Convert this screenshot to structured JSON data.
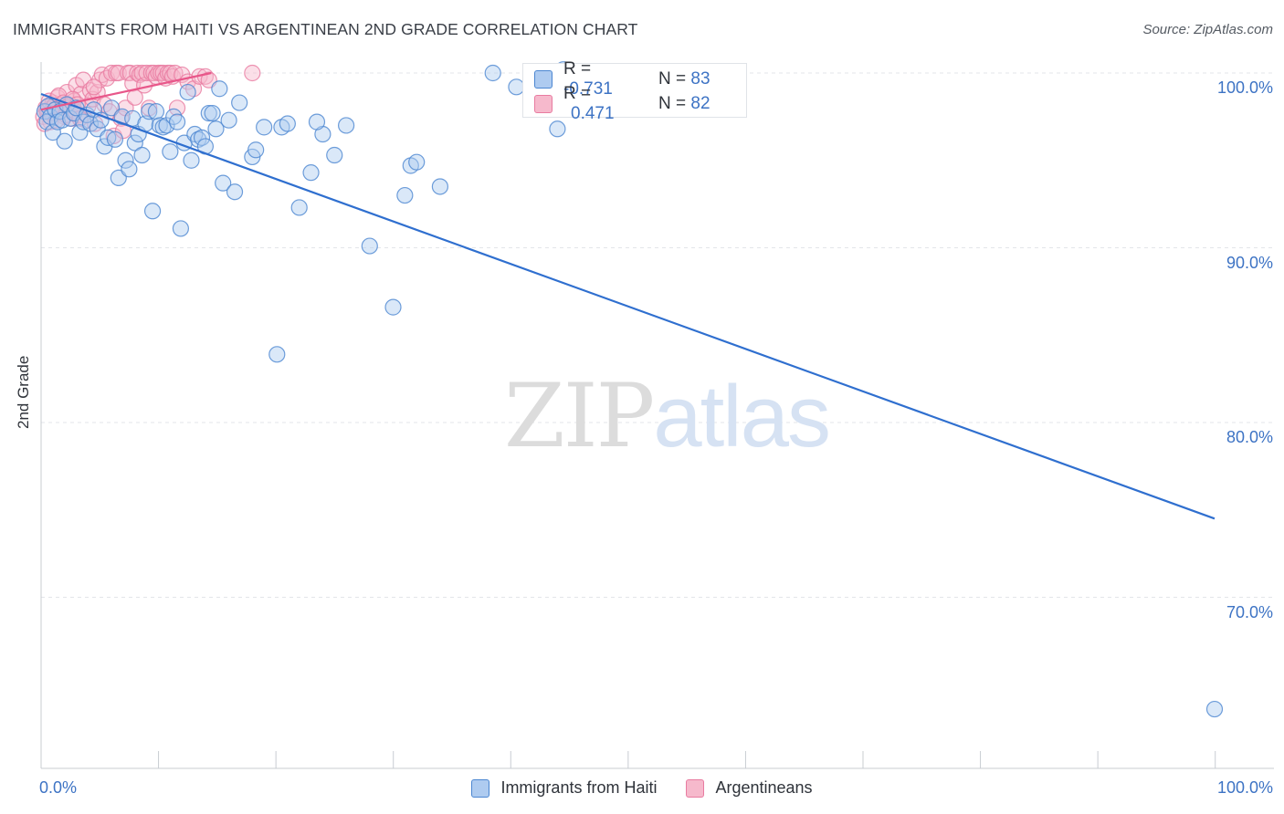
{
  "title": "IMMIGRANTS FROM HAITI VS ARGENTINEAN 2ND GRADE CORRELATION CHART",
  "source": "Source: ZipAtlas.com",
  "watermark": {
    "zip": "ZIP",
    "atlas": "atlas"
  },
  "legend": {
    "rows": [
      {
        "r_label": "R = ",
        "r_value": "-0.731",
        "n_label": "N = ",
        "n_value": "83"
      },
      {
        "r_label": "R = ",
        "r_value": "0.471",
        "n_label": "N = ",
        "n_value": "82"
      }
    ]
  },
  "colors": {
    "blue_fill": "#aecbf0",
    "blue_stroke": "#4b86d1",
    "blue_line": "#2f6fcf",
    "pink_fill": "#f6b9cc",
    "pink_stroke": "#e87ba0",
    "pink_line": "#e8578a",
    "grid": "#e3e5e9",
    "tick_text": "#3d73c4"
  },
  "chart_data": {
    "type": "scatter",
    "title": "IMMIGRANTS FROM HAITI VS ARGENTINEAN 2ND GRADE CORRELATION CHART",
    "xlabel": "",
    "ylabel": "2nd Grade",
    "xlim": [
      0,
      100
    ],
    "ylim": [
      60.5,
      101.5
    ],
    "x_tick_labels": [
      {
        "value": 0,
        "label": "0.0%"
      },
      {
        "value": 100,
        "label": "100.0%"
      }
    ],
    "y_tick_labels": [
      {
        "value": 100,
        "label": "100.0%"
      },
      {
        "value": 90,
        "label": "90.0%"
      },
      {
        "value": 80,
        "label": "80.0%"
      },
      {
        "value": 70,
        "label": "70.0%"
      }
    ],
    "series": [
      {
        "name": "Immigrants from Haiti",
        "color": "blue",
        "r": -0.731,
        "n": 83,
        "trend": {
          "x0": 0,
          "y0": 98.8,
          "x1": 100,
          "y1": 74.5
        },
        "points": [
          [
            0.3,
            97.8
          ],
          [
            0.5,
            97.2
          ],
          [
            0.6,
            98.1
          ],
          [
            0.8,
            97.5
          ],
          [
            1.0,
            96.6
          ],
          [
            1.2,
            97.9
          ],
          [
            1.4,
            97.2
          ],
          [
            1.6,
            97.8
          ],
          [
            1.8,
            97.3
          ],
          [
            2.0,
            96.1
          ],
          [
            2.2,
            98.2
          ],
          [
            2.5,
            97.4
          ],
          [
            2.8,
            97.7
          ],
          [
            3.0,
            98.0
          ],
          [
            3.3,
            96.6
          ],
          [
            3.6,
            97.2
          ],
          [
            3.9,
            97.6
          ],
          [
            4.2,
            97.1
          ],
          [
            4.5,
            97.9
          ],
          [
            4.8,
            96.8
          ],
          [
            5.1,
            97.3
          ],
          [
            5.4,
            95.8
          ],
          [
            5.7,
            96.3
          ],
          [
            6.0,
            98.0
          ],
          [
            6.3,
            96.2
          ],
          [
            6.6,
            94.0
          ],
          [
            6.9,
            97.5
          ],
          [
            7.2,
            95.0
          ],
          [
            7.5,
            94.5
          ],
          [
            7.8,
            97.4
          ],
          [
            8.0,
            96.0
          ],
          [
            8.3,
            96.5
          ],
          [
            8.6,
            95.3
          ],
          [
            8.9,
            97.1
          ],
          [
            9.2,
            97.8
          ],
          [
            9.5,
            92.1
          ],
          [
            9.8,
            97.8
          ],
          [
            10.1,
            97.0
          ],
          [
            10.4,
            96.9
          ],
          [
            10.7,
            97.0
          ],
          [
            11.0,
            95.5
          ],
          [
            11.3,
            97.5
          ],
          [
            11.6,
            97.2
          ],
          [
            11.9,
            91.1
          ],
          [
            12.2,
            96.0
          ],
          [
            12.5,
            98.9
          ],
          [
            12.8,
            95.0
          ],
          [
            13.1,
            96.5
          ],
          [
            13.4,
            96.2
          ],
          [
            13.7,
            96.3
          ],
          [
            14.0,
            95.8
          ],
          [
            14.3,
            97.7
          ],
          [
            14.6,
            97.7
          ],
          [
            14.9,
            96.8
          ],
          [
            15.2,
            99.1
          ],
          [
            15.5,
            93.7
          ],
          [
            16.0,
            97.3
          ],
          [
            16.5,
            93.2
          ],
          [
            16.9,
            98.3
          ],
          [
            18.0,
            95.2
          ],
          [
            18.3,
            95.6
          ],
          [
            19.0,
            96.9
          ],
          [
            20.1,
            83.9
          ],
          [
            20.5,
            96.9
          ],
          [
            21.0,
            97.1
          ],
          [
            22.0,
            92.3
          ],
          [
            23.0,
            94.3
          ],
          [
            24.0,
            96.5
          ],
          [
            25.0,
            95.3
          ],
          [
            23.5,
            97.2
          ],
          [
            26.0,
            97.0
          ],
          [
            28.0,
            90.1
          ],
          [
            30.0,
            86.6
          ],
          [
            31.0,
            93.0
          ],
          [
            31.5,
            94.7
          ],
          [
            32.0,
            94.9
          ],
          [
            34.0,
            93.5
          ],
          [
            38.5,
            100.0
          ],
          [
            40.5,
            99.2
          ],
          [
            44.0,
            100.1
          ],
          [
            44.5,
            100.2
          ],
          [
            44.0,
            96.8
          ],
          [
            100.0,
            63.6
          ]
        ]
      },
      {
        "name": "Argentineans",
        "color": "pink",
        "r": 0.471,
        "n": 82,
        "trend": {
          "x0": 0,
          "y0": 97.9,
          "x1": 14.5,
          "y1": 100.0
        },
        "points": [
          [
            0.2,
            97.5
          ],
          [
            0.4,
            98.0
          ],
          [
            0.6,
            97.9
          ],
          [
            0.8,
            97.2
          ],
          [
            1.0,
            98.3
          ],
          [
            1.2,
            97.7
          ],
          [
            1.4,
            98.6
          ],
          [
            1.6,
            97.9
          ],
          [
            1.8,
            98.2
          ],
          [
            2.0,
            97.5
          ],
          [
            2.2,
            98.9
          ],
          [
            2.4,
            98.0
          ],
          [
            2.6,
            97.4
          ],
          [
            2.8,
            98.4
          ],
          [
            3.0,
            99.3
          ],
          [
            3.2,
            97.6
          ],
          [
            3.4,
            98.8
          ],
          [
            3.6,
            99.6
          ],
          [
            3.8,
            97.3
          ],
          [
            4.0,
            98.1
          ],
          [
            4.2,
            99.0
          ],
          [
            4.4,
            98.5
          ],
          [
            4.6,
            97.1
          ],
          [
            4.8,
            98.9
          ],
          [
            5.0,
            99.6
          ],
          [
            5.2,
            99.9
          ],
          [
            5.4,
            98.2
          ],
          [
            5.6,
            99.7
          ],
          [
            5.8,
            97.8
          ],
          [
            6.0,
            100.0
          ],
          [
            6.2,
            96.4
          ],
          [
            6.4,
            100.0
          ],
          [
            6.6,
            100.0
          ],
          [
            6.8,
            97.4
          ],
          [
            7.0,
            96.7
          ],
          [
            7.2,
            98.0
          ],
          [
            7.4,
            100.0
          ],
          [
            7.6,
            100.0
          ],
          [
            7.8,
            99.4
          ],
          [
            8.0,
            98.6
          ],
          [
            8.2,
            100.0
          ],
          [
            8.4,
            99.9
          ],
          [
            8.6,
            100.0
          ],
          [
            8.8,
            99.3
          ],
          [
            9.0,
            100.0
          ],
          [
            9.2,
            98.0
          ],
          [
            9.4,
            100.0
          ],
          [
            9.6,
            100.0
          ],
          [
            9.8,
            99.8
          ],
          [
            10.0,
            100.0
          ],
          [
            10.2,
            100.0
          ],
          [
            10.4,
            100.0
          ],
          [
            10.6,
            99.7
          ],
          [
            10.8,
            100.0
          ],
          [
            11.0,
            100.0
          ],
          [
            11.2,
            99.8
          ],
          [
            11.4,
            100.0
          ],
          [
            11.6,
            98.0
          ],
          [
            12.0,
            99.9
          ],
          [
            12.5,
            99.5
          ],
          [
            13.0,
            99.1
          ],
          [
            13.5,
            99.8
          ],
          [
            14.0,
            99.8
          ],
          [
            14.3,
            99.6
          ],
          [
            0.3,
            97.1
          ],
          [
            0.5,
            97.8
          ],
          [
            0.7,
            98.4
          ],
          [
            0.9,
            97.7
          ],
          [
            1.1,
            98.1
          ],
          [
            1.3,
            97.3
          ],
          [
            1.5,
            98.7
          ],
          [
            1.7,
            97.9
          ],
          [
            1.9,
            98.3
          ],
          [
            2.1,
            97.6
          ],
          [
            2.3,
            98.1
          ],
          [
            2.5,
            97.9
          ],
          [
            2.7,
            98.5
          ],
          [
            2.9,
            97.8
          ],
          [
            3.1,
            98.2
          ],
          [
            3.3,
            97.4
          ],
          [
            18.0,
            100.0
          ],
          [
            4.5,
            99.2
          ]
        ]
      }
    ]
  },
  "bottom_legend": {
    "items": [
      {
        "label": "Immigrants from Haiti"
      },
      {
        "label": "Argentineans"
      }
    ]
  }
}
